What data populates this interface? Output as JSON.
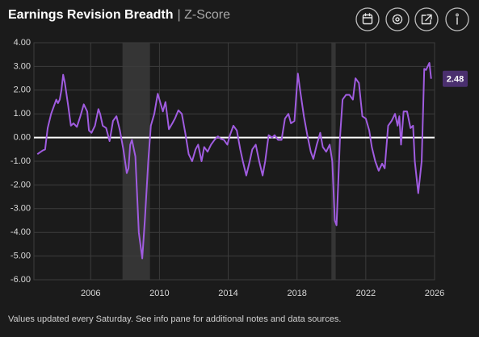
{
  "chart_data": {
    "type": "line",
    "title": "Earnings Revision Breadth",
    "subtitle": "| Z-Score",
    "footnote": "Values updated every Saturday. See info pane for additional notes and data sources.",
    "x": [
      2002.9,
      2003.2,
      2003.35,
      2003.5,
      2003.7,
      2003.9,
      2004.0,
      2004.1,
      2004.2,
      2004.3,
      2004.4,
      2004.5,
      2004.7,
      2004.85,
      2005.0,
      2005.2,
      2005.4,
      2005.6,
      2005.8,
      2005.9,
      2006.05,
      2006.25,
      2006.45,
      2006.55,
      2006.7,
      2006.9,
      2007.1,
      2007.3,
      2007.5,
      2007.7,
      2007.9,
      2008.1,
      2008.2,
      2008.3,
      2008.4,
      2008.6,
      2008.8,
      2009.0,
      2009.15,
      2009.35,
      2009.5,
      2009.7,
      2009.9,
      2010.0,
      2010.2,
      2010.35,
      2010.55,
      2010.75,
      2010.9,
      2011.1,
      2011.3,
      2011.5,
      2011.7,
      2011.9,
      2012.1,
      2012.25,
      2012.45,
      2012.6,
      2012.8,
      2013.0,
      2013.2,
      2013.4,
      2013.55,
      2013.75,
      2013.95,
      2014.1,
      2014.3,
      2014.5,
      2014.7,
      2014.85,
      2015.05,
      2015.25,
      2015.4,
      2015.6,
      2015.8,
      2016.0,
      2016.15,
      2016.35,
      2016.55,
      2016.7,
      2016.9,
      2017.1,
      2017.3,
      2017.5,
      2017.65,
      2017.85,
      2018.05,
      2018.2,
      2018.4,
      2018.6,
      2018.8,
      2018.95,
      2019.15,
      2019.35,
      2019.5,
      2019.7,
      2019.9,
      2020.05,
      2020.2,
      2020.3,
      2020.5,
      2020.65,
      2020.85,
      2021.05,
      2021.25,
      2021.4,
      2021.6,
      2021.8,
      2022.0,
      2022.2,
      2022.35,
      2022.55,
      2022.75,
      2022.95,
      2023.1,
      2023.3,
      2023.5,
      2023.7,
      2023.85,
      2023.95,
      2024.05,
      2024.2,
      2024.4,
      2024.6,
      2024.75,
      2024.85,
      2025.05,
      2025.25,
      2025.4,
      2025.5,
      2025.7,
      2025.8
    ],
    "series": [
      {
        "name": "Z-Score",
        "color": "#a05ce0",
        "values": [
          -0.7,
          -0.55,
          -0.5,
          0.4,
          1.0,
          1.4,
          1.6,
          1.45,
          1.6,
          2.0,
          2.65,
          2.3,
          1.3,
          0.5,
          0.6,
          0.45,
          0.9,
          1.4,
          1.1,
          0.3,
          0.2,
          0.5,
          1.2,
          1.0,
          0.5,
          0.4,
          -0.15,
          0.7,
          0.9,
          0.3,
          -0.5,
          -1.5,
          -1.3,
          -0.3,
          -0.1,
          -0.8,
          -4.0,
          -5.1,
          -3.5,
          -1.0,
          0.5,
          1.0,
          1.85,
          1.6,
          1.1,
          1.5,
          0.35,
          0.6,
          0.8,
          1.15,
          1.0,
          0.2,
          -0.7,
          -1.0,
          -0.5,
          -0.3,
          -1.0,
          -0.4,
          -0.6,
          -0.3,
          -0.1,
          0.05,
          -0.05,
          -0.1,
          -0.3,
          0.1,
          0.5,
          0.3,
          -0.5,
          -1.0,
          -1.6,
          -1.0,
          -0.5,
          -0.3,
          -1.0,
          -1.6,
          -1.0,
          0.1,
          0.0,
          0.1,
          -0.1,
          -0.1,
          0.8,
          1.0,
          0.6,
          0.7,
          2.7,
          1.9,
          0.9,
          0.1,
          -0.6,
          -0.9,
          -0.3,
          0.2,
          -0.4,
          -0.6,
          -0.3,
          -1.0,
          -3.5,
          -3.7,
          0.0,
          1.6,
          1.8,
          1.8,
          1.6,
          2.5,
          2.3,
          0.9,
          0.8,
          0.3,
          -0.4,
          -1.0,
          -1.4,
          -1.1,
          -1.3,
          0.5,
          0.7,
          1.0,
          0.5,
          0.9,
          -0.3,
          1.1,
          1.1,
          0.4,
          0.5,
          -1.0,
          -2.35,
          -1.0,
          2.9,
          2.85,
          3.15,
          2.48
        ]
      }
    ],
    "xlim": [
      2002.7,
      2026
    ],
    "xticks": [
      2006,
      2010,
      2014,
      2018,
      2022,
      2026
    ],
    "ylim": [
      -6,
      4
    ],
    "yticks": [
      {
        "value": 4,
        "label": "4.00"
      },
      {
        "value": 3,
        "label": "3.00"
      },
      {
        "value": 2,
        "label": "2.00"
      },
      {
        "value": 1,
        "label": "1.00"
      },
      {
        "value": 0,
        "label": "0.00"
      },
      {
        "value": -1,
        "label": "-1.00"
      },
      {
        "value": -2,
        "label": "-2.00"
      },
      {
        "value": -3,
        "label": "-3.00"
      },
      {
        "value": -4,
        "label": "-4.00"
      },
      {
        "value": -5,
        "label": "-5.00"
      },
      {
        "value": -6,
        "label": "-6.00"
      }
    ],
    "grid": true,
    "reference_line": 0,
    "shaded_periods": [
      [
        2007.85,
        2009.45
      ],
      [
        2020.0,
        2020.25
      ]
    ]
  }
}
